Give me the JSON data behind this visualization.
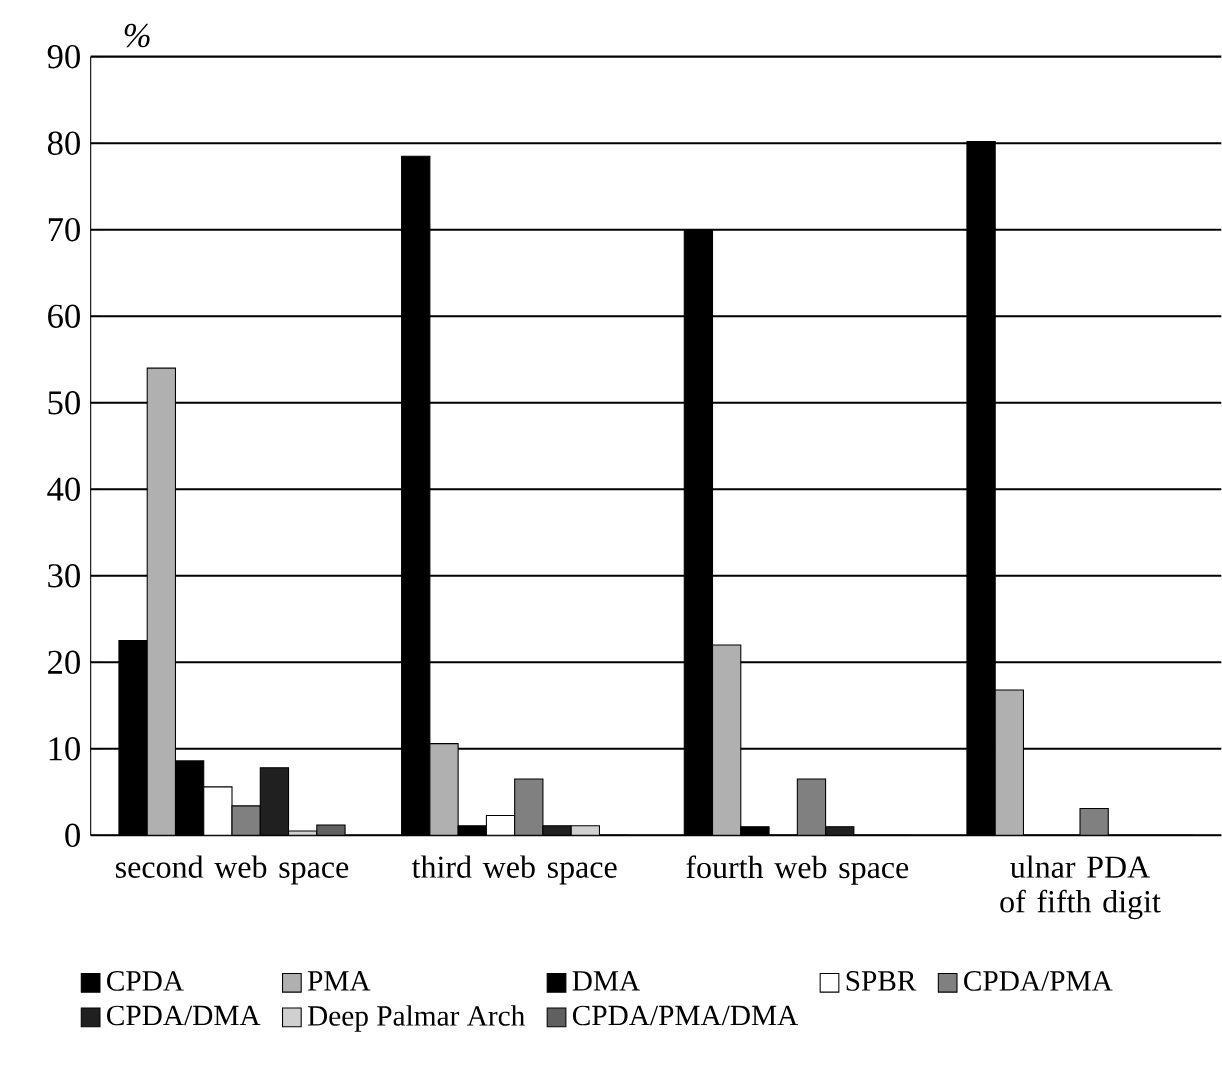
{
  "chart_data": {
    "type": "bar",
    "ylabel": "%",
    "categories": [
      "second web space",
      "third web space",
      "fourth web space",
      "ulnar PDA of fifth digit"
    ],
    "series": [
      {
        "name": "CPDA",
        "color": "#000000",
        "values": [
          22.5,
          78.5,
          70,
          80.2
        ]
      },
      {
        "name": "PMA",
        "color": "#b0b0b0",
        "values": [
          54,
          10.6,
          22,
          16.8
        ]
      },
      {
        "name": "DMA",
        "color": "#000000",
        "values": [
          8.6,
          1.1,
          1.0,
          0
        ]
      },
      {
        "name": "SPBR",
        "color": "#ffffff",
        "values": [
          5.6,
          2.3,
          0,
          0
        ]
      },
      {
        "name": "CPDA/PMA",
        "color": "#808080",
        "values": [
          3.4,
          6.5,
          6.5,
          3.1
        ]
      },
      {
        "name": "CPDA/DMA",
        "color": "#202020",
        "values": [
          7.8,
          1.1,
          1.0,
          0
        ]
      },
      {
        "name": "Deep Palmar Arch",
        "color": "#d0d0d0",
        "values": [
          0.5,
          1.1,
          0,
          0
        ]
      },
      {
        "name": "CPDA/PMA/DMA",
        "color": "#606060",
        "values": [
          1.2,
          0,
          0,
          0
        ]
      }
    ],
    "ylim": [
      0,
      90
    ],
    "yticks": [
      0,
      10,
      20,
      30,
      40,
      50,
      60,
      70,
      80,
      90
    ],
    "grid": "y",
    "legend": "bottom"
  }
}
